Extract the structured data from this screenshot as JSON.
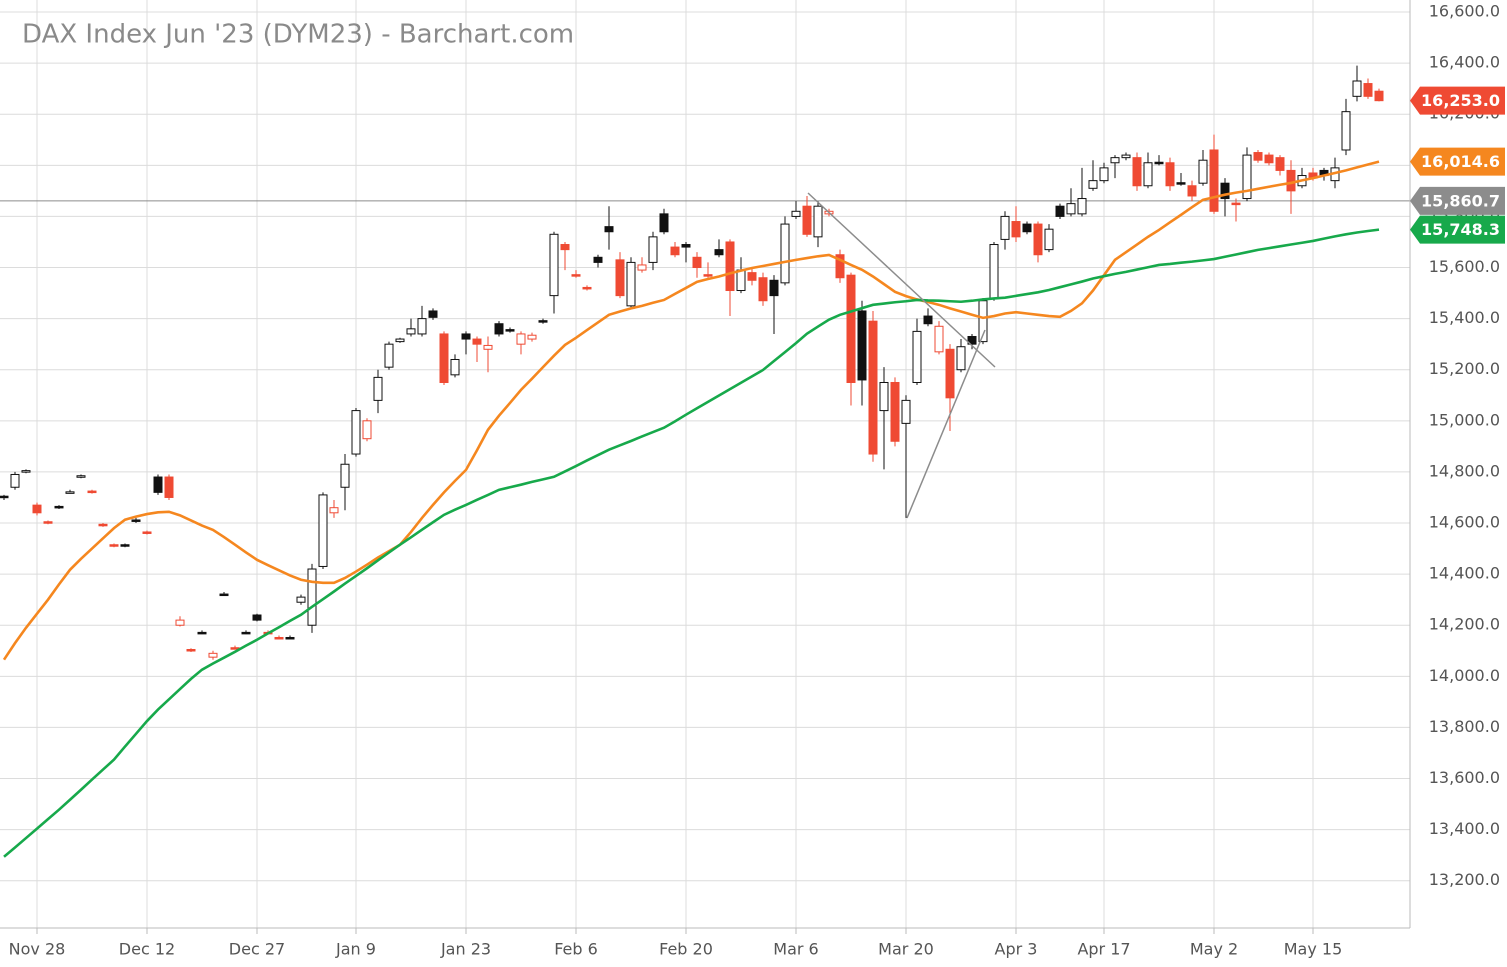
{
  "chart_data": {
    "type": "candlestick",
    "title": "DAX Index Jun '23 (DYM23) - Barchart.com",
    "categories": [
      null,
      null,
      null,
      "Nov 28",
      null,
      null,
      null,
      null,
      null,
      null,
      null,
      null,
      null,
      "Dec 12",
      null,
      null,
      null,
      null,
      null,
      null,
      null,
      null,
      null,
      "Dec 27",
      null,
      null,
      null,
      null,
      null,
      null,
      null,
      null,
      "Jan 9",
      null,
      null,
      null,
      null,
      null,
      null,
      null,
      null,
      null,
      "Jan 23",
      null,
      null,
      null,
      null,
      null,
      null,
      null,
      null,
      null,
      "Feb 6",
      null,
      null,
      null,
      null,
      null,
      null,
      null,
      null,
      null,
      "Feb 20",
      null,
      null,
      null,
      null,
      null,
      null,
      null,
      null,
      null,
      "Mar 6",
      null,
      null,
      null,
      null,
      null,
      null,
      null,
      null,
      null,
      "Mar 20",
      null,
      null,
      null,
      null,
      null,
      null,
      null,
      null,
      null,
      "Apr 3",
      null,
      null,
      null,
      null,
      null,
      null,
      null,
      "Apr 17",
      null,
      null,
      null,
      null,
      null,
      null,
      null,
      null,
      null,
      "May 2",
      null,
      null,
      null,
      null,
      null,
      null,
      null,
      null,
      "May 15",
      null,
      null,
      null,
      null,
      null,
      null
    ],
    "open": [
      14705,
      14740,
      14800,
      14670,
      14605,
      14665,
      14720,
      14780,
      14725,
      14595,
      14515,
      14515,
      14612,
      14565,
      14780,
      14780,
      14200,
      14105,
      14172,
      14075,
      14322,
      14112,
      14172,
      14240,
      14172,
      14152,
      14152,
      14290,
      14200,
      14430,
      14640,
      14740,
      14870,
      14930,
      15080,
      15210,
      15310,
      15340,
      15340,
      15430,
      15340,
      15180,
      15340,
      15320,
      15280,
      15380,
      15357,
      15300,
      15320,
      15392,
      15490,
      15690,
      15572,
      15522,
      15640,
      15760,
      15630,
      15450,
      15590,
      15620,
      15810,
      15680,
      15690,
      15640,
      15572,
      15670,
      15700,
      15510,
      15580,
      15560,
      15550,
      15540,
      15800,
      15840,
      15720,
      15810,
      15650,
      15570,
      15430,
      15390,
      15040,
      15150,
      14990,
      15150,
      15410,
      15270,
      15280,
      15200,
      15330,
      15310,
      15480,
      15710,
      15780,
      15770,
      15770,
      15670,
      15840,
      15810,
      15810,
      15910,
      15940,
      16010,
      16030,
      16030,
      15920,
      16012,
      16010,
      15932,
      15920,
      15930,
      16060,
      15930,
      15852,
      15870,
      16050,
      16040,
      16030,
      15980,
      15920,
      15970,
      15980,
      15940,
      16060,
      16270,
      16320,
      16290
    ],
    "high": [
      14710,
      14800,
      14810,
      14680,
      14610,
      14670,
      14730,
      14790,
      14730,
      14600,
      14520,
      14520,
      14620,
      14570,
      14790,
      14790,
      14235,
      14110,
      14180,
      14100,
      14330,
      14120,
      14180,
      14245,
      14180,
      14160,
      14160,
      14320,
      14440,
      14720,
      14690,
      14870,
      15050,
      15010,
      15200,
      15310,
      15325,
      15400,
      15450,
      15440,
      15350,
      15260,
      15350,
      15330,
      15330,
      15390,
      15365,
      15350,
      15345,
      15400,
      15740,
      15700,
      15590,
      15530,
      15650,
      15840,
      15660,
      15640,
      15640,
      15740,
      15830,
      15700,
      15700,
      15660,
      15620,
      15710,
      15710,
      15640,
      15600,
      15580,
      15570,
      15800,
      15860,
      15880,
      15860,
      15830,
      15670,
      15580,
      15470,
      15430,
      15210,
      15170,
      15100,
      15400,
      15440,
      15390,
      15300,
      15320,
      15340,
      15480,
      15700,
      15820,
      15840,
      15780,
      15780,
      15770,
      15850,
      15910,
      15990,
      16020,
      16010,
      16040,
      16050,
      16050,
      16050,
      16040,
      16030,
      15970,
      15940,
      16060,
      16120,
      15950,
      15870,
      16070,
      16060,
      16050,
      16040,
      16020,
      15990,
      15990,
      15990,
      16030,
      16260,
      16390,
      16340,
      16300
    ],
    "low": [
      14690,
      14730,
      14795,
      14630,
      14595,
      14655,
      14715,
      14775,
      14715,
      14585,
      14505,
      14505,
      14600,
      14555,
      14710,
      14690,
      14195,
      14095,
      14165,
      14065,
      14315,
      14105,
      14165,
      14215,
      14165,
      14145,
      14145,
      14280,
      14170,
      14420,
      14620,
      14650,
      14860,
      14920,
      15030,
      15200,
      15305,
      15330,
      15330,
      15395,
      15140,
      15170,
      15260,
      15230,
      15190,
      15330,
      15345,
      15260,
      15310,
      15380,
      15420,
      15590,
      15560,
      15510,
      15600,
      15670,
      15480,
      15440,
      15580,
      15590,
      15730,
      15640,
      15620,
      15560,
      15560,
      15640,
      15410,
      15500,
      15530,
      15450,
      15340,
      15530,
      15790,
      15720,
      15680,
      15800,
      15540,
      15060,
      15060,
      14840,
      14810,
      14900,
      14620,
      15140,
      15370,
      15260,
      14960,
      15190,
      15280,
      15300,
      15470,
      15670,
      15700,
      15730,
      15620,
      15660,
      15790,
      15800,
      15800,
      15900,
      15930,
      15950,
      16020,
      15900,
      15910,
      16000,
      15900,
      15920,
      15860,
      15920,
      15810,
      15800,
      15780,
      15860,
      16010,
      16000,
      15960,
      15810,
      15910,
      15940,
      15940,
      15910,
      16040,
      16250,
      16260,
      16250
    ],
    "close": [
      14700,
      14790,
      14805,
      14640,
      14600,
      14660,
      14722,
      14785,
      14720,
      14590,
      14510,
      14510,
      14610,
      14560,
      14720,
      14700,
      14220,
      14100,
      14170,
      14090,
      14320,
      14110,
      14170,
      14220,
      14170,
      14150,
      14150,
      14310,
      14420,
      14710,
      14660,
      14830,
      15040,
      15000,
      15170,
      15300,
      15320,
      15360,
      15400,
      15405,
      15150,
      15240,
      15320,
      15300,
      15295,
      15340,
      15355,
      15340,
      15335,
      15390,
      15730,
      15670,
      15570,
      15520,
      15620,
      15740,
      15490,
      15620,
      15610,
      15720,
      15740,
      15650,
      15680,
      15600,
      15570,
      15650,
      15510,
      15590,
      15550,
      15470,
      15490,
      15770,
      15820,
      15730,
      15840,
      15820,
      15560,
      15150,
      15160,
      14870,
      15150,
      14920,
      15080,
      15350,
      15380,
      15370,
      15090,
      15290,
      15300,
      15470,
      15690,
      15800,
      15720,
      15740,
      15650,
      15750,
      15800,
      15850,
      15870,
      15940,
      15990,
      16030,
      16040,
      15920,
      16010,
      16010,
      15920,
      15930,
      15880,
      16020,
      15820,
      15870,
      15850,
      16040,
      16020,
      16010,
      15980,
      15900,
      15960,
      15950,
      15960,
      15990,
      16210,
      16330,
      16270,
      16253
    ],
    "colors": {
      "up": "#111111",
      "down": "#ef4a33"
    },
    "series": [
      {
        "color": "#f5871f",
        "values": [
          14065,
          14130,
          14190,
          14245,
          14300,
          14360,
          14417,
          14460,
          14500,
          14540,
          14580,
          14613,
          14625,
          14635,
          14642,
          14644,
          14630,
          14610,
          14590,
          14573,
          14545,
          14515,
          14485,
          14456,
          14435,
          14415,
          14395,
          14378,
          14370,
          14366,
          14366,
          14385,
          14410,
          14437,
          14465,
          14490,
          14515,
          14565,
          14620,
          14671,
          14720,
          14765,
          14808,
          14885,
          14965,
          15020,
          15070,
          15121,
          15165,
          15210,
          15255,
          15297,
          15325,
          15355,
          15385,
          15415,
          15428,
          15440,
          15450,
          15462,
          15473,
          15497,
          15520,
          15544,
          15555,
          15565,
          15577,
          15588,
          15598,
          15606,
          15614,
          15622,
          15630,
          15637,
          15644,
          15649,
          15630,
          15610,
          15591,
          15565,
          15535,
          15505,
          15488,
          15475,
          15465,
          15454,
          15440,
          15428,
          15415,
          15403,
          15410,
          15420,
          15425,
          15420,
          15415,
          15410,
          15407,
          15430,
          15460,
          15510,
          15570,
          15630,
          15660,
          15690,
          15720,
          15747,
          15777,
          15806,
          15836,
          15865,
          15875,
          15885,
          15893,
          15900,
          15908,
          15916,
          15924,
          15931,
          15941,
          15950,
          15960,
          15970,
          15980,
          15992,
          16003,
          16014.6
        ]
      },
      {
        "color": "#17a94b",
        "values": [
          13294,
          13330,
          13367,
          13404,
          13441,
          13478,
          13517,
          13556,
          13596,
          13635,
          13674,
          13725,
          13775,
          13825,
          13870,
          13910,
          13950,
          13990,
          14026,
          14050,
          14073,
          14096,
          14120,
          14143,
          14168,
          14192,
          14217,
          14241,
          14272,
          14302,
          14332,
          14363,
          14393,
          14423,
          14454,
          14485,
          14515,
          14544,
          14574,
          14603,
          14632,
          14652,
          14671,
          14691,
          14710,
          14730,
          14740,
          14750,
          14761,
          14771,
          14781,
          14802,
          14823,
          14845,
          14866,
          14887,
          14904,
          14921,
          14939,
          14956,
          14973,
          14998,
          15024,
          15049,
          15074,
          15099,
          15124,
          15149,
          15174,
          15199,
          15234,
          15269,
          15304,
          15341,
          15369,
          15396,
          15415,
          15428,
          15441,
          15454,
          15459,
          15464,
          15468,
          15473,
          15471,
          15470,
          15468,
          15466,
          15470,
          15475,
          15479,
          15482,
          15489,
          15496,
          15503,
          15512,
          15523,
          15534,
          15545,
          15557,
          15566,
          15575,
          15583,
          15592,
          15601,
          15610,
          15614,
          15619,
          15623,
          15628,
          15633,
          15642,
          15651,
          15660,
          15669,
          15676,
          15683,
          15690,
          15697,
          15704,
          15713,
          15722,
          15730,
          15737,
          15743,
          15748.3
        ]
      }
    ],
    "price_labels": [
      {
        "value": 16253,
        "label": "16,253.0",
        "color": "#ef4a33"
      },
      {
        "value": 16014.6,
        "label": "16,014.6",
        "color": "#f5871f"
      },
      {
        "value": 15860.7,
        "label": "15,860.7",
        "color": "#8c8c8c",
        "rule": true
      },
      {
        "value": 15748.3,
        "label": "15,748.3",
        "color": "#17a94b"
      }
    ],
    "ylim": [
      13015,
      16647
    ],
    "yticks": [
      {
        "value": 13200,
        "label": "13,200.0"
      },
      {
        "value": 13400,
        "label": "13,400.0"
      },
      {
        "value": 13600,
        "label": "13,600.0"
      },
      {
        "value": 13800,
        "label": "13,800.0"
      },
      {
        "value": 14000,
        "label": "14,000.0"
      },
      {
        "value": 14200,
        "label": "14,200.0"
      },
      {
        "value": 14400,
        "label": "14,400.0"
      },
      {
        "value": 14600,
        "label": "14,600.0"
      },
      {
        "value": 14800,
        "label": "14,800.0"
      },
      {
        "value": 15000,
        "label": "15,000.0"
      },
      {
        "value": 15200,
        "label": "15,200.0"
      },
      {
        "value": 15400,
        "label": "15,400.0"
      },
      {
        "value": 15600,
        "label": "15,600.0"
      },
      {
        "value": 15800,
        "label": "15,800.0"
      },
      {
        "value": 16000,
        "label": "16,000.0"
      },
      {
        "value": 16200,
        "label": "16,200.0"
      },
      {
        "value": 16400,
        "label": "16,400.0"
      },
      {
        "value": 16600,
        "label": "16,600.0"
      }
    ],
    "grid": true
  }
}
